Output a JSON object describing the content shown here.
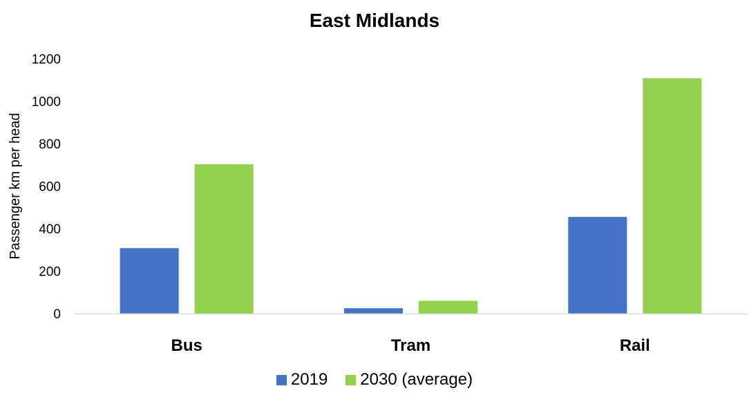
{
  "chart_data": {
    "type": "bar",
    "title": "East Midlands",
    "xlabel": "",
    "ylabel": "Passenger km per head",
    "categories": [
      "Bus",
      "Tram",
      "Rail"
    ],
    "series": [
      {
        "name": "2019",
        "values": [
          308,
          25,
          455
        ],
        "color": "#4472C4"
      },
      {
        "name": "2030 (average)",
        "values": [
          703,
          60,
          1108
        ],
        "color": "#92D050"
      }
    ],
    "ylim": [
      0,
      1200
    ],
    "yticks": [
      0,
      200,
      400,
      600,
      800,
      1000,
      1200
    ],
    "grid": false,
    "legend_position": "bottom"
  }
}
